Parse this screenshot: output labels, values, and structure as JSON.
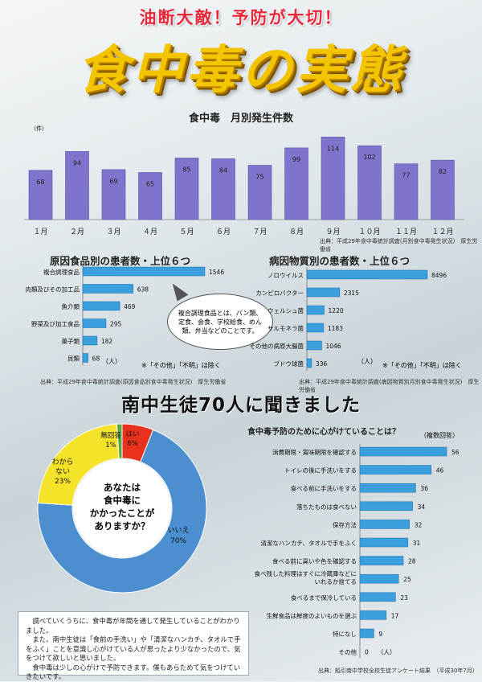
{
  "header": {
    "slogan": "油断大敵！予防が大切！",
    "title": "食中毒の実態"
  },
  "monthly": {
    "title": "食中毒　月別発生件数",
    "unit": "（件）",
    "source": "出典：平成29年食中毒統計調査(月別食中毒発生状況)　厚生労働省",
    "bar_color": "#7f74cc"
  },
  "food": {
    "title": "原因食品別の患者数・上位６つ",
    "unit": "（人）",
    "note": "※「その他」「不明」は除く",
    "source": "出典：平成29年食中毒統計調査(原因食品別食中毒発生状況)　厚生労働省",
    "bubble": "複合調理食品とは、パン類、定食、会食、学校給食、めん類、弁当などのことです。"
  },
  "pathogen": {
    "title": "病因物質別の患者数・上位６つ",
    "unit": "（人）",
    "note": "※「その他」「不明」は除く",
    "source": "出典：平成29年食中毒統計調査(病因物質別月別食中毒発生状況)　厚生労働省"
  },
  "survey": {
    "heading": "南中生徒70人に聞きました",
    "question": "あなたは食中毒にかかったことがありますか？",
    "q_line1": "あなたは",
    "q_line2": "食中毒に",
    "q_line3": "かかったことが",
    "q_line4": "ありますか？",
    "prevention_title": "食中毒予防のために心がけていることは？",
    "multi": "（複数回答）",
    "unit": "（人）",
    "source": "出典：船引南中学校全校生徒アンケート結果　（平成30年7月）"
  },
  "note": {
    "p1": "調べていくうちに、食中毒が年間を通して発生していることがわかりました。",
    "p2": "また、南中生徒は「食前の手洗い」や「清潔なハンカチ、タオルで手をふく」ことを意識し心がけている人が思ったより少なかったので、気をつけて欲しいと思いました。",
    "p3": "食中毒は少しの心がけで予防できます。僕もあらためて気をつけていきたいです。"
  },
  "chart_data": [
    {
      "type": "bar",
      "title": "食中毒　月別発生件数",
      "ylabel": "（件）",
      "categories": [
        "１月",
        "２月",
        "３月",
        "４月",
        "５月",
        "６月",
        "７月",
        "８月",
        "９月",
        "１０月",
        "１１月",
        "１２月"
      ],
      "values": [
        68,
        94,
        69,
        65,
        85,
        84,
        75,
        99,
        114,
        102,
        77,
        82
      ],
      "ylim": [
        0,
        120
      ]
    },
    {
      "type": "bar",
      "orientation": "horizontal",
      "title": "原因食品別の患者数・上位６つ",
      "categories": [
        "複合調理食品",
        "肉類及びその加工品",
        "魚介類",
        "野菜及び加工食品",
        "菓子類",
        "貝類"
      ],
      "values": [
        1546,
        638,
        469,
        295,
        182,
        68
      ],
      "unit": "（人）"
    },
    {
      "type": "bar",
      "orientation": "horizontal",
      "title": "病因物質別の患者数・上位６つ",
      "categories": [
        "ノロウイルス",
        "カンピロバクター",
        "ウェルシュ菌",
        "サルモネラ菌",
        "その他の病原大腸菌",
        "ブドウ球菌"
      ],
      "values": [
        8496,
        2315,
        1220,
        1183,
        1046,
        336
      ],
      "unit": "（人）"
    },
    {
      "type": "pie",
      "title": "あなたは食中毒にかかったことがありますか？",
      "slices": [
        {
          "label": "はい",
          "value": 6,
          "pct": "6%",
          "color": "#e8321e"
        },
        {
          "label": "いいえ",
          "value": 70,
          "pct": "70%",
          "color": "#4b8fd1"
        },
        {
          "label": "わからない",
          "line1": "わから",
          "line2": "ない",
          "value": 23,
          "pct": "23%",
          "color": "#f5e32a"
        },
        {
          "label": "無回答",
          "value": 1,
          "pct": "1%",
          "color": "#5aa644"
        }
      ]
    },
    {
      "type": "bar",
      "orientation": "horizontal",
      "title": "食中毒予防のために心がけていることは？",
      "categories": [
        "消費期限・賞味期限を確認する",
        "トイレの後に手洗いをする",
        "食べる前に手洗いをする",
        "落ちたものは食べない",
        "保存方法",
        "清潔なハンカチ、タオルで手をふく",
        "食べる前に臭いや色を確認する",
        "食べ残した料理はすぐに冷蔵庫などにいれるか捨てる",
        "食べるまで保冷している",
        "生鮮食品は鮮度のよいものを選ぶ",
        "特になし",
        "その他"
      ],
      "values": [
        56,
        46,
        36,
        34,
        32,
        31,
        28,
        25,
        23,
        17,
        9,
        0
      ],
      "unit": "（人）"
    }
  ]
}
